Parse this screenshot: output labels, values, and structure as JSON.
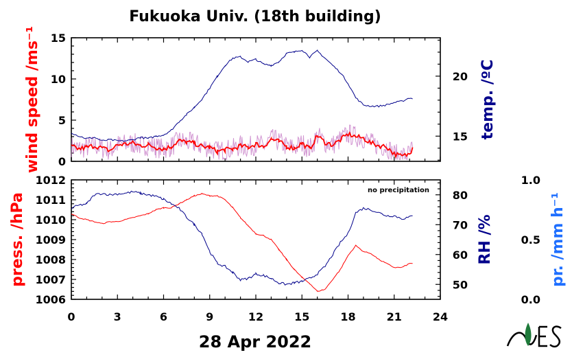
{
  "chart_data": {
    "type": "line",
    "title": "Fukuoka Univ. (18th building)",
    "xlabel": "28 Apr 2022",
    "x_ticks": [
      0,
      3,
      6,
      9,
      12,
      15,
      18,
      21,
      24
    ],
    "xlim": [
      0,
      24
    ],
    "colors": {
      "wind": "#ff0000",
      "wind_raw": "#cc88cc",
      "temp": "#00008b",
      "press": "#ff0000",
      "rh": "#00008b",
      "precip": "#1f6fff"
    },
    "panels": [
      {
        "id": "top",
        "left_axis": {
          "label": "wind speed /ms⁻¹",
          "ylim": [
            0,
            15
          ],
          "ticks": [
            0,
            5,
            10,
            15
          ]
        },
        "right_axis": {
          "label": "temp. /ºC",
          "ylim": [
            12.9,
            23.2
          ],
          "ticks": [
            15,
            20
          ]
        },
        "series": [
          {
            "axis": "left",
            "x": [
              0,
              0.5,
              1,
              1.5,
              2,
              2.5,
              3,
              3.5,
              4,
              4.5,
              5,
              5.5,
              6,
              6.5,
              7,
              7.5,
              8,
              8.5,
              9,
              9.5,
              10,
              10.5,
              11,
              11.5,
              12,
              12.5,
              13,
              13.5,
              14,
              14.5,
              15,
              15.5,
              16,
              16.5,
              17,
              17.5,
              18,
              18.5,
              19,
              19.5,
              20,
              20.5,
              21,
              21.5,
              22,
              22.2
            ],
            "values": [
              1.8,
              1.5,
              1.7,
              1.9,
              1.6,
              1.3,
              2.0,
              2.1,
              2.2,
              1.9,
              2.0,
              1.7,
              1.5,
              1.8,
              2.5,
              2.3,
              2.2,
              1.8,
              1.7,
              1.2,
              1.4,
              1.5,
              1.9,
              1.7,
              2.1,
              1.8,
              2.7,
              2.4,
              1.8,
              1.6,
              2.2,
              1.5,
              3.1,
              2.3,
              2.0,
              2.6,
              3.3,
              3.0,
              2.8,
              2.2,
              1.9,
              1.8,
              0.9,
              0.6,
              0.9,
              1.7
            ]
          },
          {
            "axis": "right",
            "x": [
              0,
              0.5,
              1,
              1.5,
              2,
              2.5,
              3,
              3.5,
              4,
              4.5,
              5,
              5.5,
              6,
              6.5,
              7,
              7.5,
              8,
              8.5,
              9,
              9.5,
              10,
              10.5,
              11,
              11.5,
              12,
              12.5,
              13,
              13.5,
              14,
              14.5,
              15,
              15.5,
              16,
              16.5,
              17,
              17.5,
              18,
              18.5,
              19,
              19.5,
              20,
              20.5,
              21,
              21.5,
              22,
              22.2
            ],
            "values": [
              15.3,
              15.0,
              14.8,
              14.9,
              14.6,
              14.7,
              14.6,
              14.6,
              14.7,
              14.9,
              14.8,
              15.0,
              15.1,
              15.5,
              16.2,
              16.8,
              17.4,
              18.1,
              19.0,
              20.0,
              20.9,
              21.5,
              21.6,
              21.2,
              21.4,
              21.0,
              20.9,
              21.2,
              21.9,
              22.0,
              22.2,
              21.6,
              22.1,
              21.5,
              20.9,
              20.3,
              19.4,
              18.2,
              17.6,
              17.5,
              17.5,
              17.6,
              17.8,
              17.9,
              18.2,
              18.1
            ]
          }
        ]
      },
      {
        "id": "bottom",
        "annotation": "no precipitation",
        "left_axis": {
          "label": "press. /hPa",
          "ylim": [
            1006,
            1012
          ],
          "ticks": [
            1006,
            1007,
            1008,
            1009,
            1010,
            1011,
            1012
          ]
        },
        "right_axis": {
          "label": "RH /%",
          "ylim": [
            45,
            85
          ],
          "ticks": [
            50,
            60,
            70,
            80
          ]
        },
        "extra_axis": {
          "label": "pr. /mm h⁻¹",
          "ylim": [
            0,
            1
          ],
          "ticks": [
            "0.0",
            "0.5",
            "1.0"
          ]
        },
        "series": [
          {
            "axis": "left",
            "x": [
              0,
              0.5,
              1,
              1.5,
              2,
              2.5,
              3,
              3.5,
              4,
              4.5,
              5,
              5.5,
              6,
              6.5,
              7,
              7.5,
              8,
              8.5,
              9,
              9.5,
              10,
              10.5,
              11,
              11.5,
              12,
              12.5,
              13,
              13.5,
              14,
              14.5,
              15,
              15.5,
              16,
              16.5,
              17,
              17.5,
              18,
              18.5,
              19,
              19.5,
              20,
              20.5,
              21,
              21.5,
              22,
              22.2
            ],
            "values": [
              1010.3,
              1010.1,
              1010.0,
              1009.9,
              1009.8,
              1009.9,
              1009.9,
              1010.0,
              1010.1,
              1010.2,
              1010.3,
              1010.5,
              1010.6,
              1010.6,
              1010.8,
              1011.0,
              1011.2,
              1011.3,
              1011.2,
              1011.2,
              1011.0,
              1010.6,
              1010.1,
              1009.7,
              1009.3,
              1009.2,
              1009.0,
              1008.5,
              1008.0,
              1007.5,
              1007.1,
              1006.8,
              1006.4,
              1006.5,
              1007.0,
              1007.5,
              1008.2,
              1008.7,
              1008.4,
              1008.3,
              1008.0,
              1007.8,
              1007.6,
              1007.6,
              1007.8,
              1007.8
            ]
          },
          {
            "axis": "right",
            "x": [
              0,
              0.5,
              1,
              1.5,
              2,
              2.5,
              3,
              3.5,
              4,
              4.5,
              5,
              5.5,
              6,
              6.5,
              7,
              7.5,
              8,
              8.5,
              9,
              9.5,
              10,
              10.5,
              11,
              11.5,
              12,
              12.5,
              13,
              13.5,
              14,
              14.5,
              15,
              15.5,
              16,
              16.5,
              17,
              17.5,
              18,
              18.5,
              19,
              19.5,
              20,
              20.5,
              21,
              21.5,
              22,
              22.2
            ],
            "values": [
              75.5,
              76.5,
              77.0,
              80.0,
              80.5,
              80.0,
              80.3,
              80.5,
              81.0,
              80.5,
              80.0,
              79.5,
              78.5,
              77.0,
              75.5,
              72.5,
              70.0,
              67.0,
              61.0,
              57.0,
              56.0,
              54.0,
              51.5,
              52.0,
              53.5,
              53.0,
              52.0,
              50.5,
              50.0,
              50.5,
              51.0,
              52.0,
              53.5,
              56.0,
              60.0,
              64.0,
              67.0,
              74.0,
              75.5,
              75.0,
              74.0,
              73.0,
              73.0,
              72.0,
              72.5,
              73.0
            ]
          }
        ]
      }
    ]
  }
}
